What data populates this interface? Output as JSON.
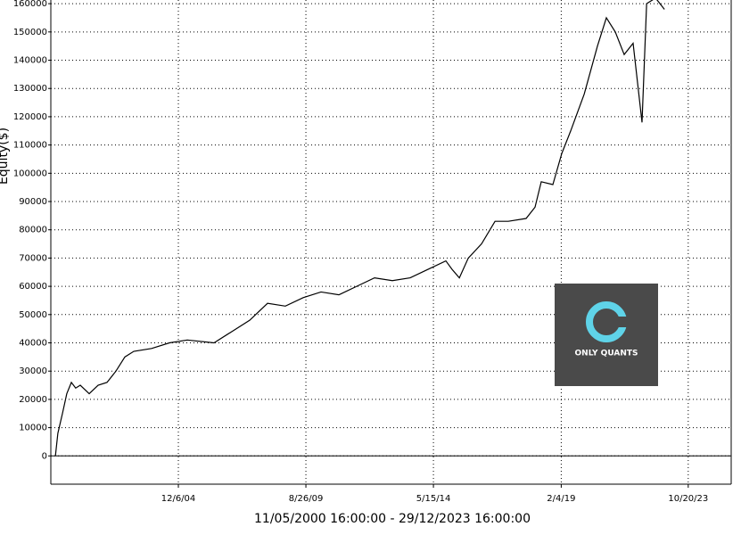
{
  "chart_data": {
    "type": "line",
    "y_label": "Equity($)",
    "x_label": "11/05/2000 16:00:00 - 29/12/2023 16:00:00",
    "logo_text": "ONLY QUANTS",
    "grid": true,
    "zero_line": true,
    "xlim": [
      2000.21,
      2025.39
    ],
    "ylim": [
      -10000,
      161300
    ],
    "xticks": [
      {
        "value": 2004.93,
        "label": "12/6/04"
      },
      {
        "value": 2009.65,
        "label": "8/26/09"
      },
      {
        "value": 2014.37,
        "label": "5/15/14"
      },
      {
        "value": 2019.1,
        "label": "2/4/19"
      },
      {
        "value": 2023.8,
        "label": "10/20/23"
      }
    ],
    "yticks": [
      0,
      10000,
      20000,
      30000,
      40000,
      50000,
      60000,
      70000,
      80000,
      90000,
      100000,
      110000,
      120000,
      130000,
      140000,
      150000,
      160000
    ],
    "series": [
      {
        "name": "Equity",
        "color": "#000000",
        "x": [
          2000.38,
          2000.47,
          2000.64,
          2000.8,
          2000.97,
          2001.13,
          2001.3,
          2001.63,
          2001.96,
          2002.29,
          2002.62,
          2002.95,
          2003.28,
          2003.94,
          2004.6,
          2005.26,
          2006.25,
          2006.91,
          2007.57,
          2008.23,
          2008.89,
          2009.55,
          2010.21,
          2010.87,
          2011.53,
          2012.19,
          2012.85,
          2013.51,
          2014.17,
          2014.83,
          2015.06,
          2015.33,
          2015.66,
          2016.15,
          2016.65,
          2017.14,
          2017.8,
          2018.13,
          2018.36,
          2018.79,
          2019.12,
          2019.45,
          2019.95,
          2020.44,
          2020.77,
          2021.1,
          2021.43,
          2021.76,
          2022.09,
          2022.26,
          2022.59,
          2022.92
        ],
        "values": [
          0,
          8000,
          15000,
          22000,
          26000,
          24000,
          25000,
          22000,
          25000,
          26000,
          30000,
          35000,
          37000,
          38000,
          40000,
          41000,
          40000,
          44000,
          48000,
          54000,
          53000,
          56000,
          58000,
          57000,
          60000,
          63000,
          62000,
          63000,
          66000,
          69000,
          66000,
          63000,
          70000,
          75000,
          83000,
          83000,
          84000,
          88000,
          97000,
          96000,
          107000,
          115000,
          128000,
          145000,
          155000,
          150000,
          142000,
          146000,
          118000,
          160000,
          162000,
          158000
        ]
      }
    ]
  }
}
